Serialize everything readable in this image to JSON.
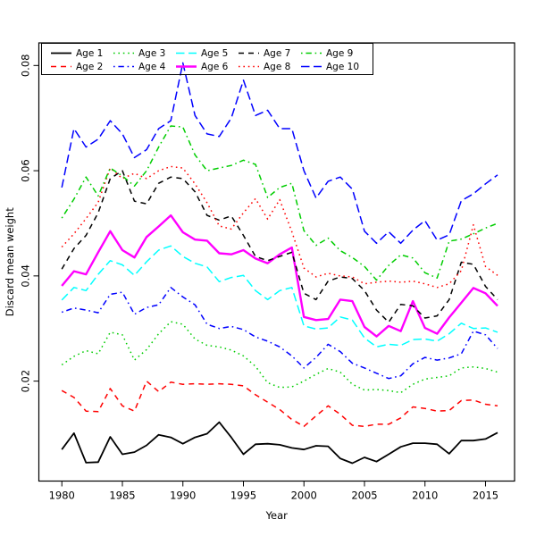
{
  "figure": {
    "background": "#ffffff"
  },
  "axes": {
    "xlabel": "Year",
    "ylabel": "Discard mean weight",
    "x_tick_labels": [
      "1980",
      "1985",
      "1990",
      "1995",
      "2000",
      "2005",
      "2010",
      "2015"
    ],
    "x_tick_values": [
      1980,
      1985,
      1990,
      1995,
      2000,
      2005,
      2010,
      2015
    ],
    "y_tick_labels": [
      "0.02",
      "0.04",
      "0.06",
      "0.08"
    ],
    "y_tick_values": [
      0.02,
      0.04,
      0.06,
      0.08
    ]
  },
  "legend": {
    "items": [
      {
        "label": "Age 1",
        "color": "#000000",
        "linetype": "solid"
      },
      {
        "label": "Age 2",
        "color": "#FF0000",
        "linetype": "dashed"
      },
      {
        "label": "Age 3",
        "color": "#00CD00",
        "linetype": "dotted"
      },
      {
        "label": "Age 4",
        "color": "#0000FF",
        "linetype": "dotdash"
      },
      {
        "label": "Age 5",
        "color": "#00FFFF",
        "linetype": "longdash"
      },
      {
        "label": "Age 6",
        "color": "#FF00FF",
        "linetype": "solid"
      },
      {
        "label": "Age 7",
        "color": "#000000",
        "linetype": "dashed"
      },
      {
        "label": "Age 8",
        "color": "#FF0000",
        "linetype": "dotted"
      },
      {
        "label": "Age 9",
        "color": "#00CD00",
        "linetype": "dotdash"
      },
      {
        "label": "Age 10",
        "color": "#0000FF",
        "linetype": "longdash"
      }
    ]
  },
  "chart_data": {
    "type": "line",
    "title": "",
    "xlabel": "Year",
    "ylabel": "Discard mean weight",
    "xlim": [
      1978.1,
      2017.4
    ],
    "ylim": [
      0.001,
      0.0843
    ],
    "grid": false,
    "legend_position": "top-left",
    "x": [
      1980,
      1981,
      1982,
      1983,
      1984,
      1985,
      1986,
      1987,
      1988,
      1989,
      1990,
      1991,
      1992,
      1993,
      1994,
      1995,
      1996,
      1997,
      1998,
      1999,
      2000,
      2001,
      2002,
      2003,
      2004,
      2005,
      2006,
      2007,
      2008,
      2009,
      2010,
      2011,
      2012,
      2013,
      2014,
      2015,
      2016
    ],
    "series": [
      {
        "name": "Age 1",
        "color": "#000000",
        "linetype": "solid",
        "linewidth": 1.8,
        "values": [
          0.007,
          0.0101,
          0.0045,
          0.0046,
          0.0094,
          0.0061,
          0.0065,
          0.0078,
          0.0098,
          0.0093,
          0.0081,
          0.0093,
          0.01,
          0.0122,
          0.0093,
          0.0061,
          0.008,
          0.0081,
          0.0079,
          0.0073,
          0.007,
          0.0077,
          0.0076,
          0.0053,
          0.0044,
          0.0055,
          0.0047,
          0.0061,
          0.0075,
          0.0082,
          0.0082,
          0.008,
          0.0062,
          0.0087,
          0.0087,
          0.009,
          0.0102
        ]
      },
      {
        "name": "Age 2",
        "color": "#FF0000",
        "linetype": "dashed",
        "linewidth": 1.5,
        "values": [
          0.0182,
          0.0169,
          0.0143,
          0.0142,
          0.0186,
          0.0153,
          0.0143,
          0.02,
          0.018,
          0.0198,
          0.0194,
          0.0195,
          0.0194,
          0.0195,
          0.0194,
          0.0191,
          0.0174,
          0.016,
          0.0146,
          0.0127,
          0.0114,
          0.0134,
          0.0153,
          0.0137,
          0.0116,
          0.0114,
          0.0118,
          0.0118,
          0.013,
          0.0151,
          0.0148,
          0.0143,
          0.0144,
          0.0163,
          0.0164,
          0.0156,
          0.0153
        ]
      },
      {
        "name": "Age 3",
        "color": "#00CD00",
        "linetype": "dotted",
        "linewidth": 1.5,
        "values": [
          0.0231,
          0.0247,
          0.0258,
          0.0252,
          0.0293,
          0.0288,
          0.024,
          0.026,
          0.029,
          0.0313,
          0.0308,
          0.028,
          0.0268,
          0.0265,
          0.0259,
          0.0248,
          0.0228,
          0.0197,
          0.0188,
          0.0189,
          0.02,
          0.0213,
          0.0224,
          0.0217,
          0.0194,
          0.0183,
          0.0184,
          0.0182,
          0.0178,
          0.0194,
          0.0204,
          0.0207,
          0.021,
          0.0225,
          0.0227,
          0.0224,
          0.0217
        ]
      },
      {
        "name": "Age 4",
        "color": "#0000FF",
        "linetype": "dotdash",
        "linewidth": 1.5,
        "values": [
          0.0331,
          0.0339,
          0.0335,
          0.033,
          0.0365,
          0.0369,
          0.0327,
          0.034,
          0.0345,
          0.0378,
          0.036,
          0.0345,
          0.0308,
          0.03,
          0.0304,
          0.0298,
          0.0284,
          0.0276,
          0.0265,
          0.0248,
          0.0225,
          0.0245,
          0.027,
          0.0256,
          0.0234,
          0.0225,
          0.0215,
          0.0205,
          0.021,
          0.0233,
          0.0245,
          0.024,
          0.0244,
          0.0252,
          0.0295,
          0.0288,
          0.0262
        ]
      },
      {
        "name": "Age 5",
        "color": "#00FFFF",
        "linetype": "longdash",
        "linewidth": 1.5,
        "values": [
          0.0354,
          0.0378,
          0.0372,
          0.0403,
          0.0429,
          0.0421,
          0.0401,
          0.0427,
          0.0449,
          0.0457,
          0.0437,
          0.0424,
          0.0417,
          0.0389,
          0.0397,
          0.0401,
          0.0372,
          0.0355,
          0.0372,
          0.0378,
          0.0305,
          0.0299,
          0.0301,
          0.0322,
          0.0316,
          0.0282,
          0.0265,
          0.027,
          0.0268,
          0.0279,
          0.028,
          0.0276,
          0.029,
          0.031,
          0.03,
          0.0301,
          0.0293
        ]
      },
      {
        "name": "Age 6",
        "color": "#FF00FF",
        "linetype": "solid",
        "linewidth": 2.4,
        "values": [
          0.0381,
          0.0409,
          0.0403,
          0.0445,
          0.0485,
          0.0449,
          0.0435,
          0.0474,
          0.0494,
          0.0515,
          0.0483,
          0.0469,
          0.0467,
          0.0443,
          0.0441,
          0.0449,
          0.0433,
          0.0424,
          0.0441,
          0.0454,
          0.0322,
          0.0316,
          0.0318,
          0.0355,
          0.0352,
          0.0303,
          0.0285,
          0.0305,
          0.0295,
          0.0352,
          0.0301,
          0.029,
          0.0321,
          0.0349,
          0.0377,
          0.0367,
          0.0343
        ]
      },
      {
        "name": "Age 7",
        "color": "#000000",
        "linetype": "dashed",
        "linewidth": 1.5,
        "values": [
          0.0413,
          0.0452,
          0.0477,
          0.052,
          0.0585,
          0.06,
          0.0542,
          0.0537,
          0.0576,
          0.0588,
          0.0585,
          0.056,
          0.0515,
          0.0506,
          0.0514,
          0.0477,
          0.0437,
          0.0429,
          0.0437,
          0.0445,
          0.0367,
          0.0355,
          0.039,
          0.0398,
          0.0395,
          0.0372,
          0.0335,
          0.0312,
          0.0346,
          0.0343,
          0.032,
          0.0324,
          0.0355,
          0.0426,
          0.0422,
          0.038,
          0.0355
        ]
      },
      {
        "name": "Age 8",
        "color": "#FF0000",
        "linetype": "dotted",
        "linewidth": 1.5,
        "values": [
          0.0455,
          0.048,
          0.0509,
          0.054,
          0.0605,
          0.0585,
          0.0595,
          0.0585,
          0.06,
          0.0608,
          0.0605,
          0.0575,
          0.0539,
          0.0495,
          0.0489,
          0.052,
          0.0547,
          0.0508,
          0.0545,
          0.0484,
          0.0415,
          0.0398,
          0.0405,
          0.04,
          0.0398,
          0.0385,
          0.0388,
          0.039,
          0.0388,
          0.039,
          0.0385,
          0.0378,
          0.0385,
          0.041,
          0.0497,
          0.0418,
          0.0401
        ]
      },
      {
        "name": "Age 9",
        "color": "#00CD00",
        "linetype": "dotdash",
        "linewidth": 1.5,
        "values": [
          0.051,
          0.0546,
          0.0588,
          0.0552,
          0.0605,
          0.059,
          0.0571,
          0.06,
          0.0645,
          0.0685,
          0.0683,
          0.063,
          0.06,
          0.0605,
          0.061,
          0.062,
          0.0612,
          0.0549,
          0.0568,
          0.0576,
          0.0486,
          0.0458,
          0.0472,
          0.0448,
          0.0435,
          0.0418,
          0.0392,
          0.042,
          0.044,
          0.0434,
          0.0406,
          0.0396,
          0.0466,
          0.047,
          0.048,
          0.0491,
          0.05
        ]
      },
      {
        "name": "Age 10",
        "color": "#0000FF",
        "linetype": "longdash",
        "linewidth": 1.5,
        "values": [
          0.0568,
          0.068,
          0.0645,
          0.066,
          0.0695,
          0.067,
          0.0625,
          0.064,
          0.068,
          0.0695,
          0.0805,
          0.0705,
          0.067,
          0.0665,
          0.07,
          0.0772,
          0.0705,
          0.0715,
          0.068,
          0.068,
          0.06,
          0.0548,
          0.058,
          0.0588,
          0.0565,
          0.0485,
          0.0462,
          0.0484,
          0.0462,
          0.0487,
          0.0505,
          0.0468,
          0.0478,
          0.0543,
          0.0556,
          0.0575,
          0.0592
        ]
      }
    ]
  }
}
